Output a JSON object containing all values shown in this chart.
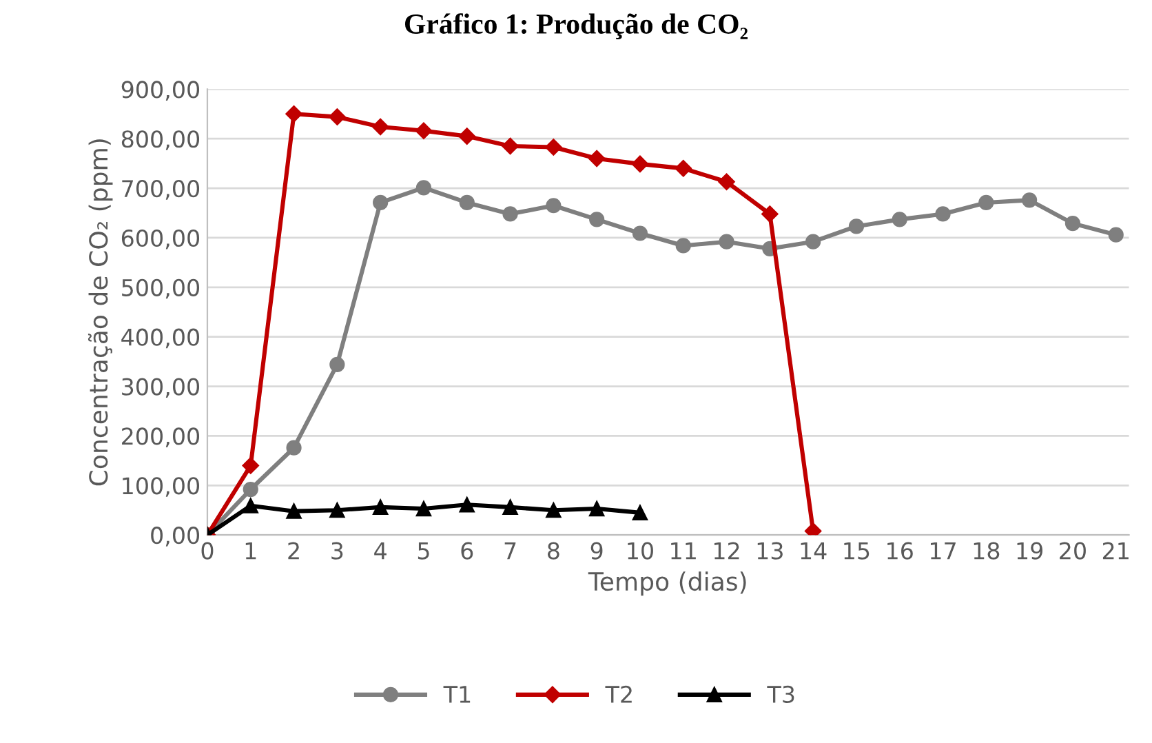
{
  "chart_data": {
    "type": "line",
    "title": "Gráfico 1: Produção de CO₂",
    "xlabel": "Tempo (dias)",
    "ylabel": "Concentração de CO₂ (ppm)",
    "xlim": [
      0,
      21.3
    ],
    "xticks": [
      0,
      1,
      2,
      3,
      4,
      5,
      6,
      7,
      8,
      9,
      10,
      11,
      12,
      13,
      14,
      15,
      16,
      17,
      18,
      19,
      20,
      21
    ],
    "ylim": [
      0,
      900
    ],
    "yticks": [
      {
        "value": 0,
        "label": "0,00"
      },
      {
        "value": 100,
        "label": "100,00"
      },
      {
        "value": 200,
        "label": "200,00"
      },
      {
        "value": 300,
        "label": "300,00"
      },
      {
        "value": 400,
        "label": "400,00"
      },
      {
        "value": 500,
        "label": "500,00"
      },
      {
        "value": 600,
        "label": "600,00"
      },
      {
        "value": 700,
        "label": "700,00"
      },
      {
        "value": 800,
        "label": "800,00"
      },
      {
        "value": 900,
        "label": "900,00"
      }
    ],
    "grid": "y",
    "legend": "bottom",
    "line_style": "solid",
    "series": [
      {
        "name": "T1",
        "color": "#7f7f7f",
        "marker": "circle",
        "x": [
          0,
          1,
          2,
          3,
          4,
          5,
          6,
          7,
          8,
          9,
          10,
          11,
          12,
          13,
          14,
          15,
          16,
          17,
          18,
          19,
          20,
          21
        ],
        "values": [
          0,
          92,
          176,
          344,
          671,
          701,
          671,
          648,
          665,
          637,
          609,
          584,
          592,
          578,
          592,
          623,
          637,
          648,
          671,
          676,
          629,
          606
        ]
      },
      {
        "name": "T2",
        "color": "#c00000",
        "marker": "diamond",
        "x": [
          0,
          1,
          2,
          3,
          4,
          5,
          6,
          7,
          8,
          9,
          10,
          11,
          12,
          13,
          14
        ],
        "values": [
          0,
          140,
          850,
          844,
          824,
          816,
          805,
          785,
          783,
          760,
          749,
          740,
          713,
          648,
          8
        ]
      },
      {
        "name": "T3",
        "color": "#000000",
        "marker": "triangle",
        "x": [
          0,
          1,
          2,
          3,
          4,
          5,
          6,
          7,
          8,
          9,
          10
        ],
        "values": [
          0,
          59,
          48,
          50,
          56,
          53,
          61,
          56,
          50,
          53,
          45
        ]
      }
    ]
  }
}
